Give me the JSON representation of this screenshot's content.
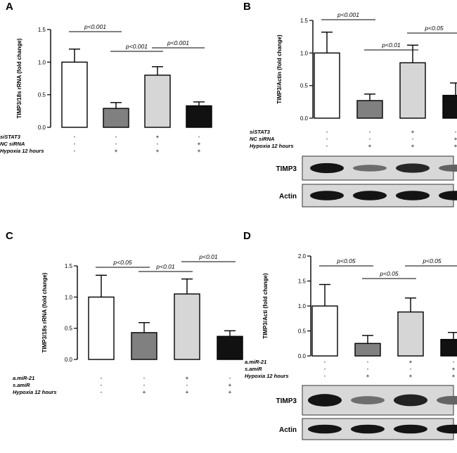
{
  "chart_data": [
    {
      "panel": "A",
      "type": "bar",
      "ylabel": "TIMP3/18s rRNA (fold change)",
      "ylim": [
        0,
        1.5
      ],
      "yticks": [
        "0.0",
        "0.5",
        "1.0",
        "1.5"
      ],
      "values": [
        1.0,
        0.29,
        0.8,
        0.33
      ],
      "errors": [
        0.2,
        0.09,
        0.13,
        0.06
      ],
      "bar_colors": [
        "#ffffff",
        "#808080",
        "#d6d6d6",
        "#111111"
      ],
      "annotations": [
        {
          "text": "p<0.001",
          "from": 0,
          "to": 1
        },
        {
          "text": "p<0.001",
          "from": 1,
          "to": 2
        },
        {
          "text": "p<0.001",
          "from": 2,
          "to": 3
        }
      ],
      "conditions": [
        {
          "label": "siSTAT3",
          "signs": [
            "-",
            "-",
            "+",
            "-"
          ]
        },
        {
          "label": "NC siRNA",
          "signs": [
            "-",
            "-",
            "-",
            "+"
          ]
        },
        {
          "label": "Hypoxia 12 hours",
          "signs": [
            "-",
            "+",
            "+",
            "+"
          ]
        }
      ]
    },
    {
      "panel": "B",
      "type": "bar",
      "ylabel": "TIMP3/Actin (fold change)",
      "ylim": [
        0,
        1.5
      ],
      "yticks": [
        "0.0",
        "0.5",
        "1.0",
        "1.5"
      ],
      "values": [
        1.0,
        0.27,
        0.85,
        0.35
      ],
      "errors": [
        0.32,
        0.1,
        0.27,
        0.19
      ],
      "bar_colors": [
        "#ffffff",
        "#808080",
        "#d6d6d6",
        "#111111"
      ],
      "annotations": [
        {
          "text": "p<0.001",
          "from": 0,
          "to": 1
        },
        {
          "text": "p<0.01",
          "from": 1,
          "to": 2
        },
        {
          "text": "p<0.05",
          "from": 2,
          "to": 3
        }
      ],
      "conditions": [
        {
          "label": "siSTAT3",
          "signs": [
            "-",
            "-",
            "+",
            "-"
          ]
        },
        {
          "label": "NC siRNA",
          "signs": [
            "-",
            "-",
            "-",
            "+"
          ]
        },
        {
          "label": "Hypoxia 12 hours",
          "signs": [
            "-",
            "+",
            "+",
            "+"
          ]
        }
      ],
      "blots": [
        "TIMP3",
        "Actin"
      ]
    },
    {
      "panel": "C",
      "type": "bar",
      "ylabel": "TIMP3/18s rRNA (fold change)",
      "ylim": [
        0,
        1.5
      ],
      "yticks": [
        "0.0",
        "0.5",
        "1.0",
        "1.5"
      ],
      "values": [
        1.0,
        0.43,
        1.05,
        0.37
      ],
      "errors": [
        0.35,
        0.16,
        0.24,
        0.09
      ],
      "bar_colors": [
        "#ffffff",
        "#808080",
        "#d6d6d6",
        "#111111"
      ],
      "annotations": [
        {
          "text": "p<0.05",
          "from": 0,
          "to": 1
        },
        {
          "text": "p<0.01",
          "from": 1,
          "to": 2
        },
        {
          "text": "p<0.01",
          "from": 2,
          "to": 3
        }
      ],
      "conditions": [
        {
          "label": "a.miR-21",
          "signs": [
            "-",
            "-",
            "+",
            "-"
          ]
        },
        {
          "label": "s.amiR",
          "signs": [
            "-",
            "-",
            "-",
            "+"
          ]
        },
        {
          "label": "Hypoxia 12 hours",
          "signs": [
            "-",
            "+",
            "+",
            "+"
          ]
        }
      ]
    },
    {
      "panel": "D",
      "type": "bar",
      "ylabel": "TIMP3/Acti (fold change)",
      "ylim": [
        0,
        2.0
      ],
      "yticks": [
        "0.0",
        "0.5",
        "1.0",
        "1.5",
        "2.0"
      ],
      "values": [
        1.0,
        0.25,
        0.88,
        0.33
      ],
      "errors": [
        0.43,
        0.16,
        0.28,
        0.14
      ],
      "bar_colors": [
        "#ffffff",
        "#808080",
        "#d6d6d6",
        "#111111"
      ],
      "annotations": [
        {
          "text": "p<0.05",
          "from": 0,
          "to": 1
        },
        {
          "text": "p<0.05",
          "from": 1,
          "to": 2
        },
        {
          "text": "p<0.05",
          "from": 2,
          "to": 3
        }
      ],
      "conditions": [
        {
          "label": "a.miR-21",
          "signs": [
            "-",
            "-",
            "+",
            "-"
          ]
        },
        {
          "label": "s.amiR",
          "signs": [
            "-",
            "-",
            "-",
            "+"
          ]
        },
        {
          "label": "Hypoxia 12 hours",
          "signs": [
            "-",
            "+",
            "+",
            "+"
          ]
        }
      ],
      "blots": [
        "TIMP3",
        "Actin"
      ]
    }
  ]
}
